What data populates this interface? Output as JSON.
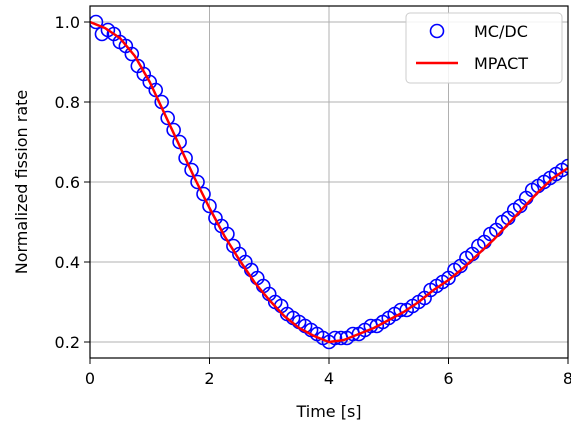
{
  "chart_data": {
    "type": "line",
    "xlabel": "Time [s]",
    "ylabel": "Normalized fission rate",
    "xlim": [
      0,
      8
    ],
    "ylim": [
      0.16,
      1.04
    ],
    "xticks": [
      "0",
      "2",
      "4",
      "6",
      "8"
    ],
    "yticks": [
      "0.2",
      "0.4",
      "0.6",
      "0.8",
      "1.0"
    ],
    "grid": true,
    "legend_position": "top-right",
    "series": [
      {
        "name": "MC/DC",
        "marker": "circle-open",
        "color": "#0000ff",
        "x": [
          0.1,
          0.2,
          0.3,
          0.4,
          0.5,
          0.6,
          0.7,
          0.8,
          0.9,
          1.0,
          1.1,
          1.2,
          1.3,
          1.4,
          1.5,
          1.6,
          1.7,
          1.8,
          1.9,
          2.0,
          2.1,
          2.2,
          2.3,
          2.4,
          2.5,
          2.6,
          2.7,
          2.8,
          2.9,
          3.0,
          3.1,
          3.2,
          3.3,
          3.4,
          3.5,
          3.6,
          3.7,
          3.8,
          3.9,
          4.0,
          4.1,
          4.2,
          4.3,
          4.4,
          4.5,
          4.6,
          4.7,
          4.8,
          4.9,
          5.0,
          5.1,
          5.2,
          5.3,
          5.4,
          5.5,
          5.6,
          5.7,
          5.8,
          5.9,
          6.0,
          6.1,
          6.2,
          6.3,
          6.4,
          6.5,
          6.6,
          6.7,
          6.8,
          6.9,
          7.0,
          7.1,
          7.2,
          7.3,
          7.4,
          7.5,
          7.6,
          7.7,
          7.8,
          7.9,
          8.0
        ],
        "y": [
          1.0,
          0.97,
          0.98,
          0.97,
          0.95,
          0.94,
          0.92,
          0.89,
          0.87,
          0.85,
          0.83,
          0.8,
          0.76,
          0.73,
          0.7,
          0.66,
          0.63,
          0.6,
          0.57,
          0.54,
          0.51,
          0.49,
          0.47,
          0.44,
          0.42,
          0.4,
          0.38,
          0.36,
          0.34,
          0.32,
          0.3,
          0.29,
          0.27,
          0.26,
          0.25,
          0.24,
          0.23,
          0.22,
          0.21,
          0.2,
          0.21,
          0.21,
          0.21,
          0.22,
          0.22,
          0.23,
          0.24,
          0.24,
          0.25,
          0.26,
          0.27,
          0.28,
          0.28,
          0.29,
          0.3,
          0.31,
          0.33,
          0.34,
          0.35,
          0.36,
          0.38,
          0.39,
          0.41,
          0.42,
          0.44,
          0.45,
          0.47,
          0.48,
          0.5,
          0.51,
          0.53,
          0.54,
          0.56,
          0.58,
          0.59,
          0.6,
          0.61,
          0.62,
          0.63,
          0.64
        ]
      },
      {
        "name": "MPACT",
        "marker": "none",
        "color": "#ff0000",
        "x": [
          0.0,
          0.25,
          0.5,
          0.75,
          1.0,
          1.25,
          1.5,
          1.75,
          2.0,
          2.25,
          2.5,
          2.75,
          3.0,
          3.25,
          3.5,
          3.75,
          4.0,
          4.25,
          4.5,
          4.75,
          5.0,
          5.25,
          5.5,
          5.75,
          6.0,
          6.25,
          6.5,
          6.75,
          7.0,
          7.25,
          7.5,
          7.75,
          8.0
        ],
        "y": [
          1.0,
          0.985,
          0.96,
          0.915,
          0.85,
          0.77,
          0.69,
          0.61,
          0.535,
          0.465,
          0.405,
          0.35,
          0.305,
          0.265,
          0.235,
          0.215,
          0.2,
          0.205,
          0.22,
          0.235,
          0.255,
          0.275,
          0.3,
          0.33,
          0.355,
          0.385,
          0.42,
          0.455,
          0.495,
          0.535,
          0.575,
          0.61,
          0.635
        ]
      }
    ]
  }
}
